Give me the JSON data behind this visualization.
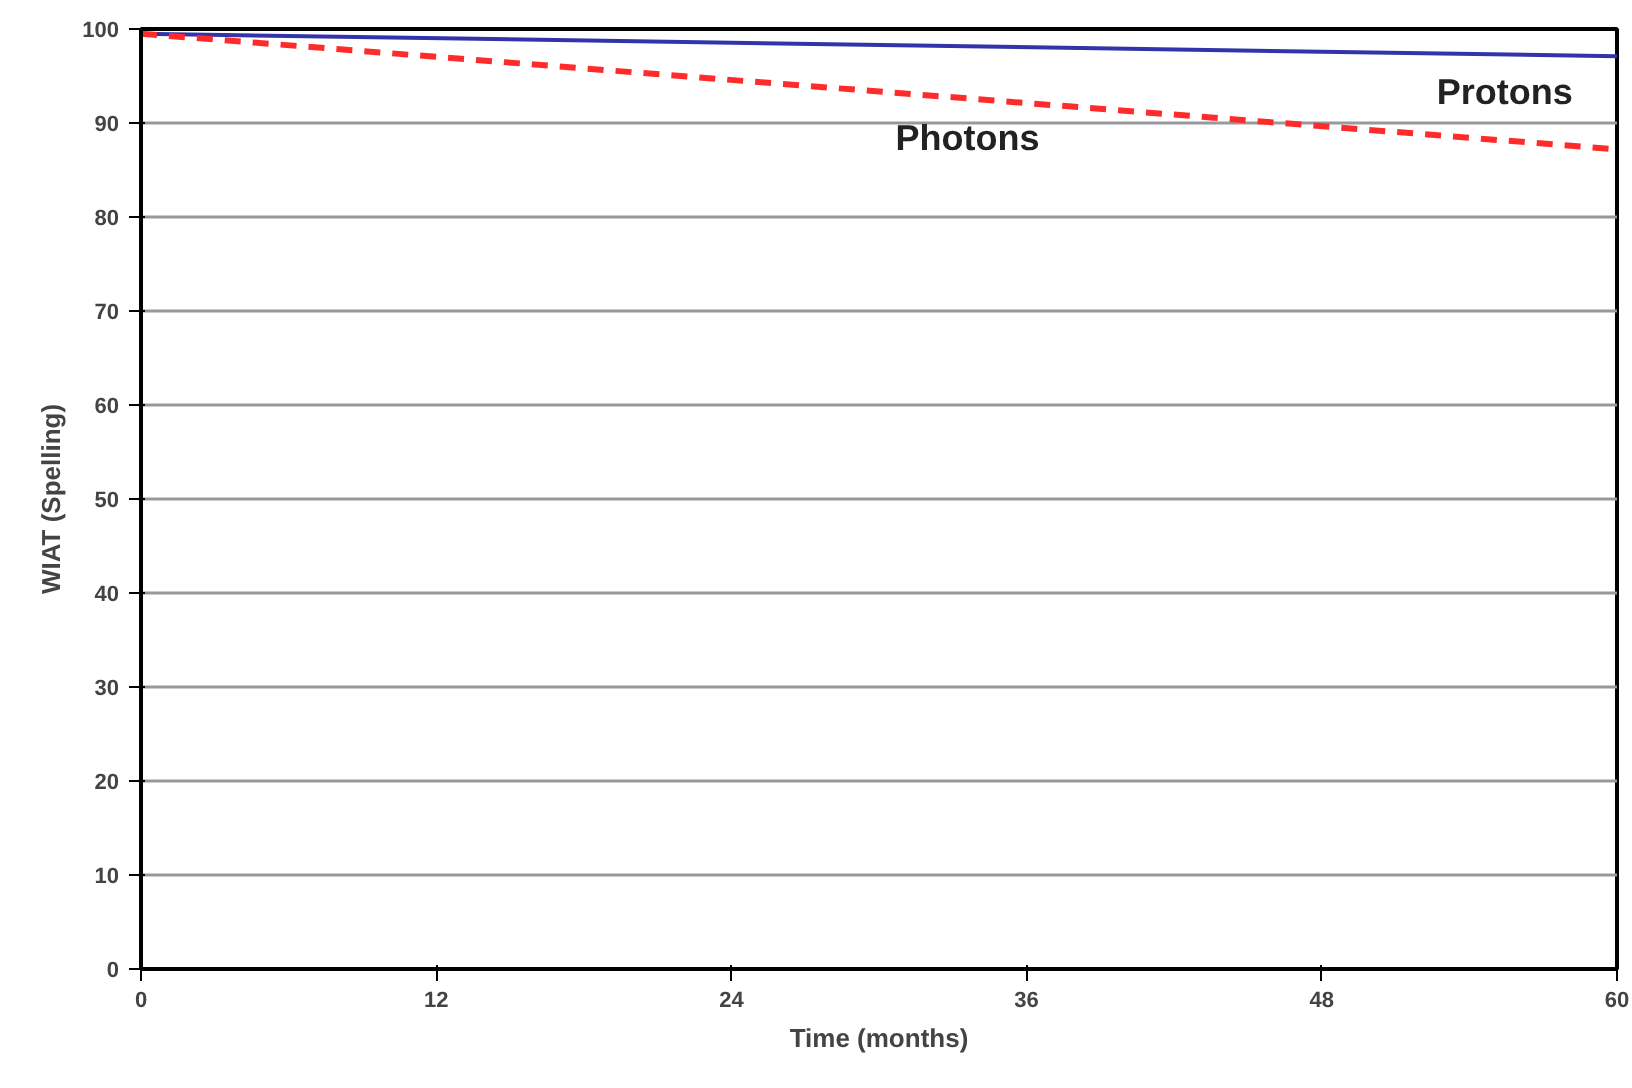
{
  "chart_data": {
    "type": "line",
    "xlabel": "Time (months)",
    "ylabel": "WIAT (Spelling)",
    "x": [
      0,
      60
    ],
    "series": [
      {
        "name": "Protons",
        "color": "#3333aa",
        "values": [
          99.5,
          97.1
        ],
        "line_style": "solid"
      },
      {
        "name": "Photons",
        "color": "#ff2a2a",
        "values": [
          99.5,
          87.2
        ],
        "line_style": "dashed"
      }
    ],
    "xlim": [
      0,
      60
    ],
    "xticks": [
      0,
      12,
      24,
      36,
      48,
      60
    ],
    "ylim": [
      0,
      100
    ],
    "yticks": [
      0,
      10,
      20,
      30,
      40,
      50,
      60,
      70,
      80,
      90,
      100
    ],
    "grid": "y",
    "legend": false,
    "marker": "none"
  }
}
